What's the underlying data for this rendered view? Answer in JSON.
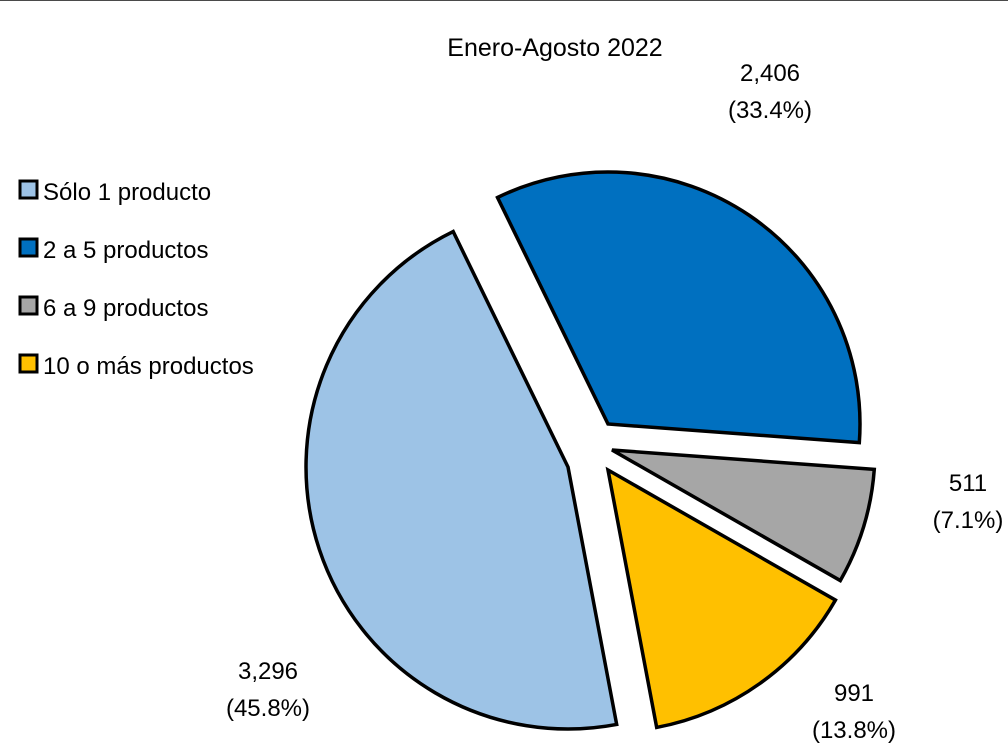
{
  "chart_data": {
    "type": "pie",
    "title": "Enero-Agosto  2022",
    "legend_position": "left",
    "exploded": true,
    "slices": [
      {
        "name": "Sólo 1 producto",
        "value": 3296,
        "percent_label": "(45.8%)",
        "value_label": "3,296",
        "color": "#9dc3e6"
      },
      {
        "name": "2 a 5 productos",
        "value": 2406,
        "percent_label": "(33.4%)",
        "value_label": "2,406",
        "color": "#0070c0"
      },
      {
        "name": "6 a 9 productos",
        "value": 511,
        "percent_label": "(7.1%)",
        "value_label": "511",
        "color": "#a6a6a6"
      },
      {
        "name": "10 o más productos",
        "value": 991,
        "percent_label": "(13.8%)",
        "value_label": "991",
        "color": "#ffc000"
      }
    ],
    "draw_order": [
      2,
      0,
      1,
      3
    ]
  }
}
